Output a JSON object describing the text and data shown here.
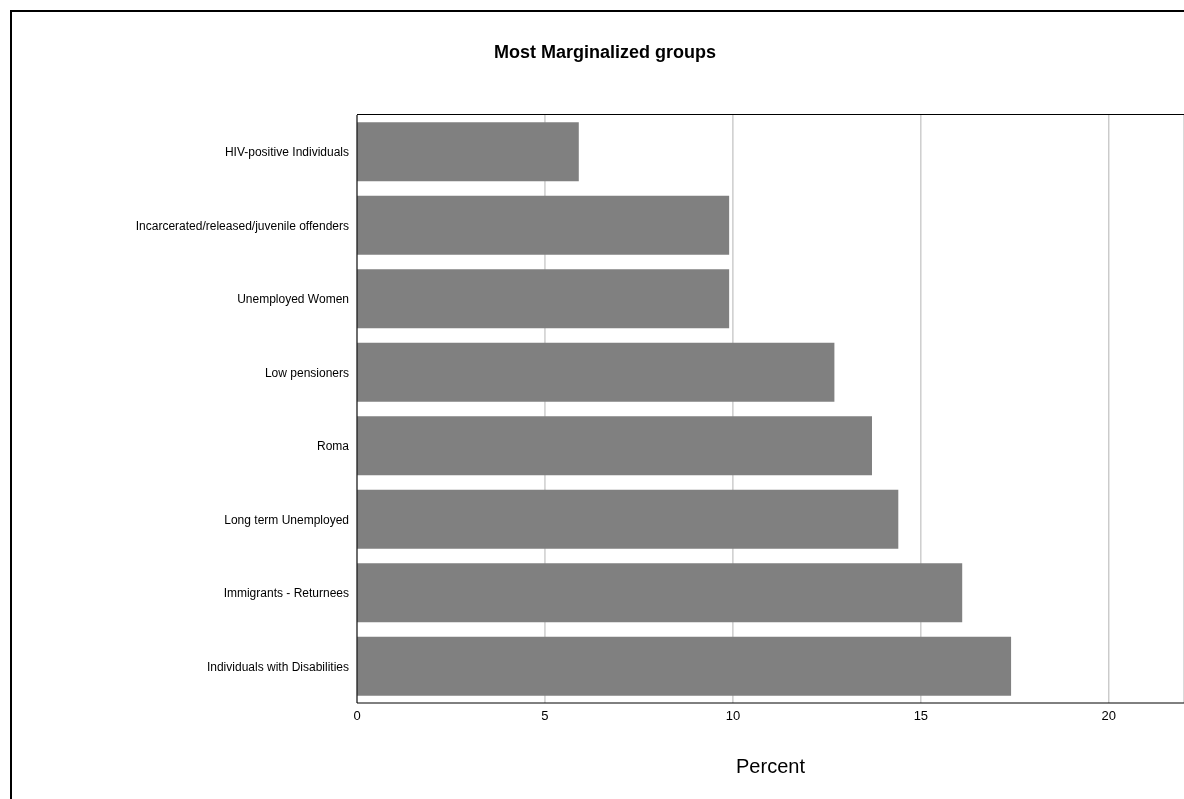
{
  "chart_data": {
    "type": "bar",
    "orientation": "horizontal",
    "title": "Most Marginalized groups",
    "xlabel": "Percent",
    "categories": [
      "HIV-positive Individuals",
      "Incarcerated/released/juvenile offenders",
      "Unemployed Women",
      "Low pensioners",
      "Roma",
      "Long term Unemployed",
      "Immigrants - Returnees",
      "Individuals with Disabilities"
    ],
    "values": [
      5.9,
      9.9,
      9.9,
      12.7,
      13.7,
      14.4,
      16.1,
      17.4
    ],
    "color": "#808080",
    "xlim": [
      0,
      22
    ],
    "xticks": [
      0,
      5,
      10,
      15,
      20
    ],
    "grid": "x"
  }
}
